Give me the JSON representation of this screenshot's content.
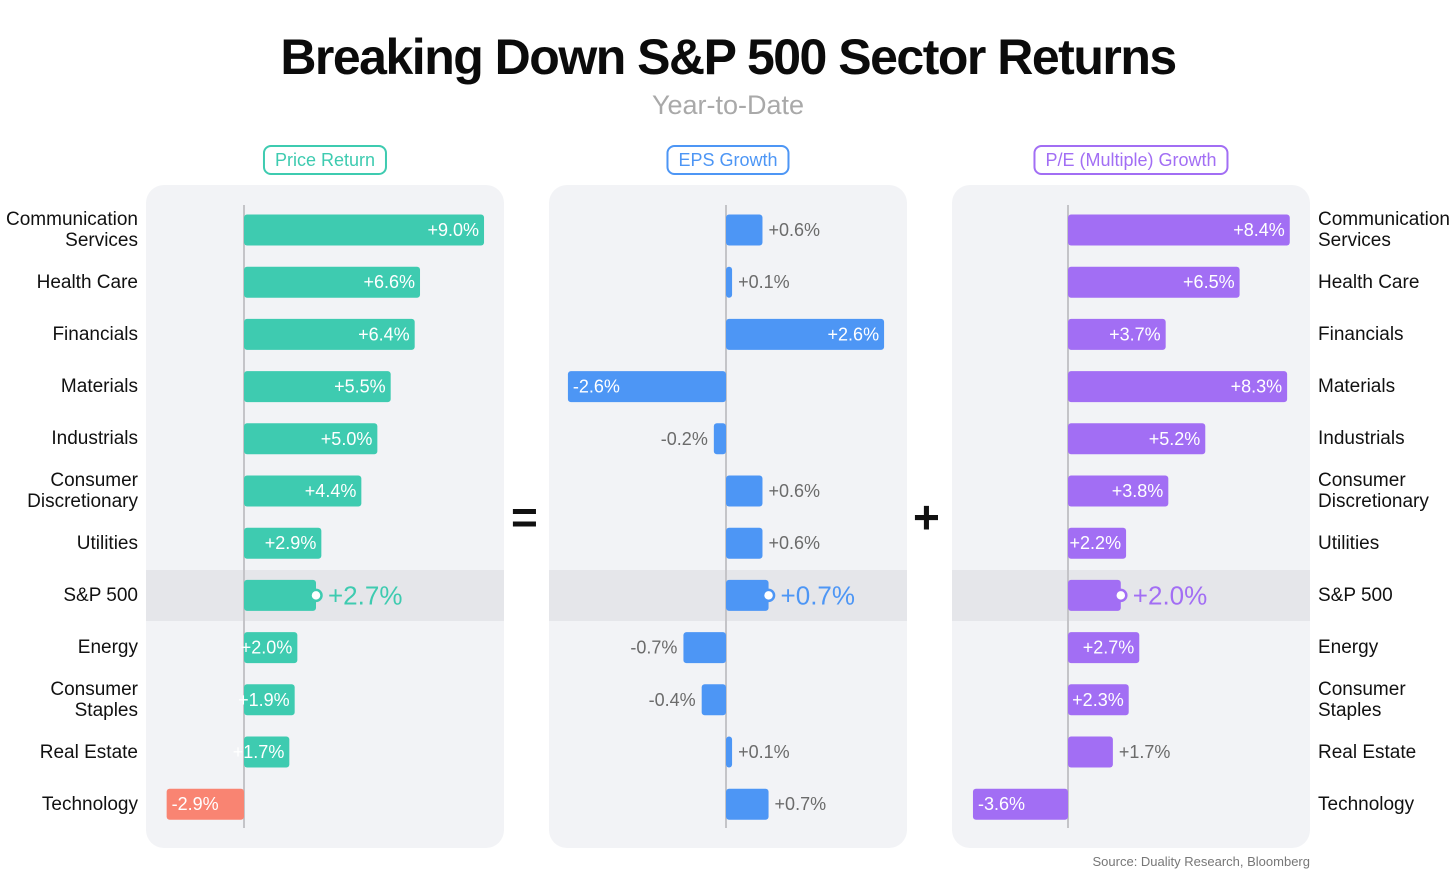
{
  "title": "Breaking Down S&P 500 Sector Returns",
  "subtitle": "Year-to-Date",
  "operators": {
    "equals": "=",
    "plus": "+"
  },
  "source": "Source: Duality Research, Bloomberg",
  "colors": {
    "price_return": "#3ecbb0",
    "price_return_negative": "#f98472",
    "eps_growth": "#4d96f5",
    "pe_growth": "#a26ef4",
    "panel_bg": "#f2f3f6",
    "highlight_band": "#e5e6ea",
    "label_outside": "#6b6b6b"
  },
  "chart_data": {
    "type": "bar",
    "orientation": "horizontal",
    "categories": [
      "Communication\nServices",
      "Health Care",
      "Financials",
      "Materials",
      "Industrials",
      "Consumer\nDiscretionary",
      "Utilities",
      "S&P 500",
      "Energy",
      "Consumer\nStaples",
      "Real Estate",
      "Technology"
    ],
    "highlight_category": "S&P 500",
    "unit": "%",
    "series": [
      {
        "name": "Price Return",
        "values": [
          9.0,
          6.6,
          6.4,
          5.5,
          5.0,
          4.4,
          2.9,
          2.7,
          2.0,
          1.9,
          1.7,
          -2.9
        ],
        "labels": [
          "+9.0%",
          "+6.6%",
          "+6.4%",
          "+5.5%",
          "+5.0%",
          "+4.4%",
          "+2.9%",
          "+2.7%",
          "+2.0%",
          "+1.9%",
          "+1.7%",
          "-2.9%"
        ]
      },
      {
        "name": "EPS Growth",
        "values": [
          0.6,
          0.1,
          2.6,
          -2.6,
          -0.2,
          0.6,
          0.6,
          0.7,
          -0.7,
          -0.4,
          0.1,
          0.7
        ],
        "labels": [
          "+0.6%",
          "+0.1%",
          "+2.6%",
          "-2.6%",
          "-0.2%",
          "+0.6%",
          "+0.6%",
          "+0.7%",
          "-0.7%",
          "-0.4%",
          "+0.1%",
          "+0.7%"
        ]
      },
      {
        "name": "P/E (Multiple) Growth",
        "values": [
          8.4,
          6.5,
          3.7,
          8.3,
          5.2,
          3.8,
          2.2,
          2.0,
          2.7,
          2.3,
          1.7,
          -3.6
        ],
        "labels": [
          "+8.4%",
          "+6.5%",
          "+3.7%",
          "+8.3%",
          "+5.2%",
          "+3.8%",
          "+2.2%",
          "+2.0%",
          "+2.7%",
          "+2.3%",
          "+1.7%",
          "-3.6%"
        ]
      }
    ],
    "legend": "none",
    "grid": false
  }
}
